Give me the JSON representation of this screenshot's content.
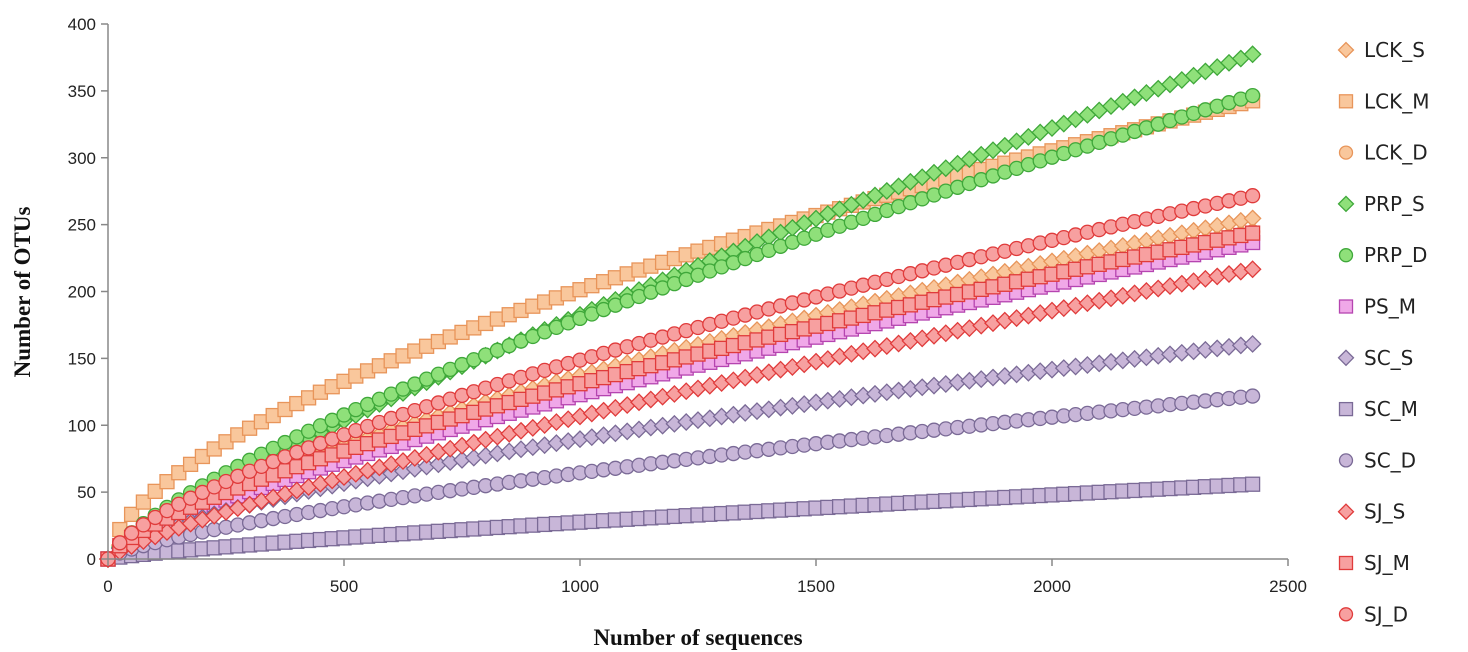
{
  "chart_data": {
    "type": "scatter",
    "xlabel": "Number of sequences",
    "ylabel": "Number of OTUs",
    "xlim": [
      0,
      2500
    ],
    "ylim": [
      0,
      400
    ],
    "x_ticks": [
      "0",
      "500",
      "1000",
      "1500",
      "2000",
      "2500"
    ],
    "y_ticks": [
      "0",
      "50",
      "100",
      "150",
      "200",
      "250",
      "300",
      "350",
      "400"
    ],
    "grid": false,
    "legend_position": "right",
    "x_max_data": 2430,
    "point_step": 25,
    "series": [
      {
        "name": "LCK_S",
        "marker": "diamond",
        "fill": "#f9c79c",
        "stroke": "#e8955a",
        "final_value": 255,
        "exponent": 0.7
      },
      {
        "name": "LCK_M",
        "marker": "square",
        "fill": "#f9c79c",
        "stroke": "#e8955a",
        "final_value": 343,
        "exponent": 0.6
      },
      {
        "name": "LCK_D",
        "marker": "circle",
        "fill": "#f9c79c",
        "stroke": "#e8955a",
        "final_value": 245,
        "exponent": 0.72
      },
      {
        "name": "PRP_S",
        "marker": "diamond",
        "fill": "#8fe07a",
        "stroke": "#3fa83a",
        "final_value": 378,
        "exponent": 0.82
      },
      {
        "name": "PRP_D",
        "marker": "circle",
        "fill": "#8fe07a",
        "stroke": "#3fa83a",
        "final_value": 347,
        "exponent": 0.74
      },
      {
        "name": "PS_M",
        "marker": "square",
        "fill": "#f0a8e8",
        "stroke": "#b545b0",
        "final_value": 237,
        "exponent": 0.74
      },
      {
        "name": "SC_S",
        "marker": "diamond",
        "fill": "#c8b6d8",
        "stroke": "#7a6a96",
        "final_value": 161,
        "exponent": 0.66
      },
      {
        "name": "SC_M",
        "marker": "square",
        "fill": "#c8b6d8",
        "stroke": "#7a6a96",
        "final_value": 56,
        "exponent": 0.8
      },
      {
        "name": "SC_D",
        "marker": "circle",
        "fill": "#c8b6d8",
        "stroke": "#7a6a96",
        "final_value": 122,
        "exponent": 0.72
      },
      {
        "name": "SJ_S",
        "marker": "diamond",
        "fill": "#f7a0a0",
        "stroke": "#e03b3b",
        "final_value": 217,
        "exponent": 0.8
      },
      {
        "name": "SJ_M",
        "marker": "square",
        "fill": "#f7a0a0",
        "stroke": "#e03b3b",
        "final_value": 244,
        "exponent": 0.7
      },
      {
        "name": "SJ_D",
        "marker": "circle",
        "fill": "#f7a0a0",
        "stroke": "#e03b3b",
        "final_value": 272,
        "exponent": 0.68
      }
    ]
  }
}
